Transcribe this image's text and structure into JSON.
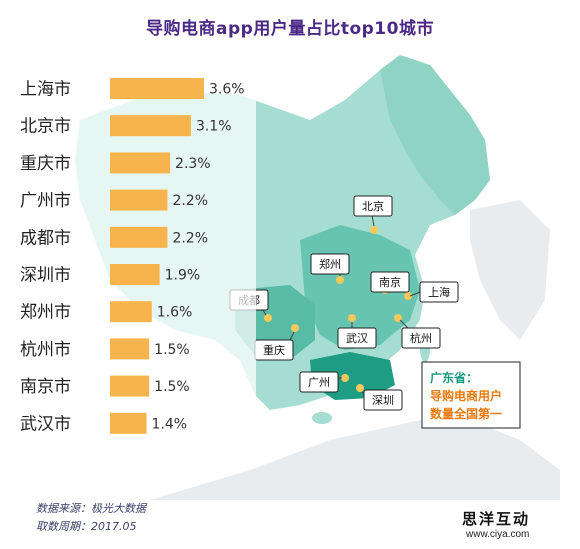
{
  "title": "导购电商app用户量占比top10城市",
  "chart_data": {
    "type": "bar",
    "orientation": "horizontal",
    "categories": [
      "上海市",
      "北京市",
      "重庆市",
      "广州市",
      "成都市",
      "深圳市",
      "郑州市",
      "杭州市",
      "南京市",
      "武汉市"
    ],
    "values": [
      3.6,
      3.1,
      2.3,
      2.2,
      2.2,
      1.9,
      1.6,
      1.5,
      1.5,
      1.4
    ],
    "value_labels": [
      "3.6%",
      "3.1%",
      "2.3%",
      "2.2%",
      "2.2%",
      "1.9%",
      "1.6%",
      "1.5%",
      "1.5%",
      "1.4%"
    ],
    "bar_color": "#f7b34c",
    "xlim": [
      0,
      3.6
    ],
    "grid": false,
    "legend": "none"
  },
  "map": {
    "colors": {
      "land": "#a6ddd2",
      "land_mid": "#66c4b0",
      "land_dark": "#2ea890",
      "callout_border": "#222222",
      "city_dot": "#f7c95a",
      "highlight_text": "#e9790c"
    },
    "city_labels": [
      "北京",
      "郑州",
      "南京",
      "上海",
      "成都",
      "武汉",
      "杭州",
      "重庆",
      "广州",
      "深圳"
    ],
    "callout": {
      "heading": "广东省：",
      "line1": "导购电商用户",
      "line2": "数量全国第一"
    }
  },
  "footer": {
    "source": "数据来源：极光大数据",
    "period": "取数周期：2017.05",
    "brand_cn": "思洋互动",
    "brand_url": "www.ciya.com"
  }
}
